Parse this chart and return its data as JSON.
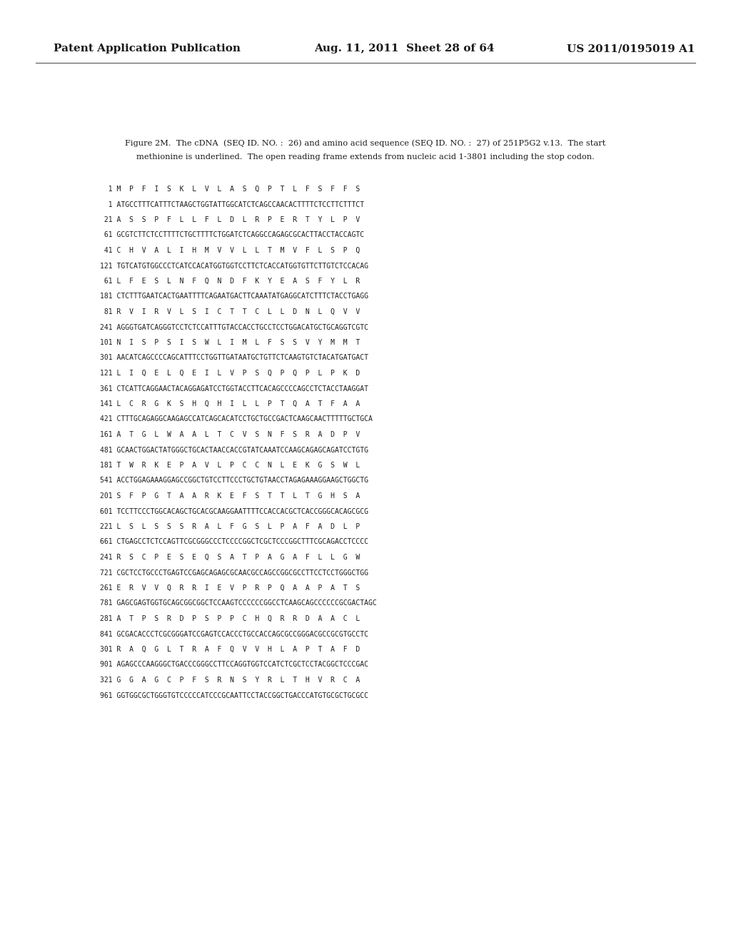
{
  "background_color": "#ffffff",
  "header_left": "Patent Application Publication",
  "header_center": "Aug. 11, 2011  Sheet 28 of 64",
  "header_right": "US 2011/0195019 A1",
  "figure_caption_line1": "Figure 2M.  The cDNA  (SEQ ID. NO. :  26) and amino acid sequence (SEQ ID. NO. :  27) of 251P5G2 v.13.  The start",
  "figure_caption_line2": "methionine is underlined.  The open reading frame extends from nucleic acid 1-3801 including the stop codon.",
  "sequence_lines": [
    "  1 M  P  F  I  S  K  L  V  L  A  S  Q  P  T  L  F  S  F  F  S",
    "  1 ATGCCTTTCATTTCTAAGCTGGTATTGGCATCTCAGCCAACACTTTTCTCCTTCTTTCT",
    " 21 A  S  S  P  F  L  L  F  L  D  L  R  P  E  R  T  Y  L  P  V",
    " 61 GCGTCTTCTCCTTTTCTGCTTTTCTGGATCTCAGGCCAGAGCGCACTTACCTACCAGTC",
    " 41 C  H  V  A  L  I  H  M  V  V  L  L  T  M  V  F  L  S  P  Q",
    "121 TGTCATGTGGCCCTCATCCACATGGTGGTCCTTCTCACCATGGTGTTCTTGTCTCCACAG",
    " 61 L  F  E  S  L  N  F  Q  N  D  F  K  Y  E  A  S  F  Y  L  R",
    "181 CTCTTTGAATCACTGAATTTTCAGAATGACTTCAAATATGAGGCATCTTTCTACCTGAGG",
    " 81 R  V  I  R  V  L  S  I  C  T  T  C  L  L  D  N  L  Q  V  V",
    "241 AGGGTGATCAGGGTCCTCTCCATTTGTACCACCTGCCTCCTGGACATGCTGCAGGTCGTC",
    "101 N  I  S  P  S  I  S  W  L  I  M  L  F  S  S  V  Y  M  M  T",
    "301 AACATCAGCCCCAGCATTTCCTGGTTGATAATGCTGTTCTCAAGTGTCTACATGATGACT",
    "121 L  I  Q  E  L  Q  E  I  L  V  P  S  Q  P  Q  P  L  P  K  D",
    "361 CTCATTCAGGAACTACAGGAGATCCTGGTACCTTCACAGCCCCAGCCTCTACCTAAGGAT",
    "141 L  C  R  G  K  S  H  Q  H  I  L  L  P  T  Q  A  T  F  A  A",
    "421 CTTTGCAGAGGCAAGAGCCATCAGCACATCCTGCTGCCGACTCAAGCAACTTTTTGCTGCA",
    "161 A  T  G  L  W  A  A  L  T  C  V  S  N  F  S  R  A  D  P  V",
    "481 GCAACTGGACTATGGGCTGCACTAACCACCGTATCAAATCCAAGCAGAGCAGATCCTGTG",
    "181 T  W  R  K  E  P  A  V  L  P  C  C  N  L  E  K  G  S  W  L",
    "541 ACCTGGAGAAAGGAGCCGGCTGTCCTTCCCTGCTGTAACCTAGAGAAAGGAAGCTGGCTG",
    "201 S  F  P  G  T  A  A  R  K  E  F  S  T  T  L  T  G  H  S  A",
    "601 TCCTTCCCTGGCACAGCTGCACGCAAGGAATTTTCCACCACGCTCACCGGGCACAGCGCG",
    "221 L  S  L  S  S  S  R  A  L  F  G  S  L  P  A  F  A  D  L  P",
    "661 CTGAGCCTCTCCAGTTCGCGGGCCCTCCCCGGCTCGCTCCCGGCTTTCGCAGACCTCCCC",
    "241 R  S  C  P  E  S  E  Q  S  A  T  P  A  G  A  F  L  L  G  W",
    "721 CGCTCCTGCCCTGAGTCCGAGCAGAGCGCAACGCCAGCCGGCGCCTTCCTCCTGGGCTGG",
    "261 E  R  V  V  Q  R  R  I  E  V  P  R  P  Q  A  A  P  A  T  S",
    "781 GAGCGAGTGGTGCAGCGGCGGCTCCAAGTCCCCCCGGCCTCAAGCAGCCCCCCGCGACTAGC",
    "281 A  T  P  S  R  D  P  S  P  P  C  H  Q  R  R  D  A  A  C  L",
    "841 GCGACACCCTCGCGGGATCCGAGTCCACCCTGCCACCAGCGCCGGGACGCCGCGTGCCTC",
    "301 R  A  Q  G  L  T  R  A  F  Q  V  V  H  L  A  P  T  A  F  D",
    "901 AGAGCCCAAGGGCTGACCCGGGCCTTCCAGGTGGTCCATCTCGCTCCTACGGCTCCCGAC",
    "321 G  G  A  G  C  P  F  S  R  N  S  Y  R  L  T  H  V  R  C  A",
    "961 GGTGGCGCTGGGTGTCCCCCATCCCGCAATTCCTACCGGCTGACCCATGTGCGCTGCGCC"
  ]
}
